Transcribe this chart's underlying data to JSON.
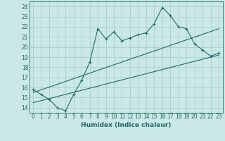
{
  "xlabel": "Humidex (Indice chaleur)",
  "xlim": [
    -0.5,
    23.5
  ],
  "ylim": [
    13.5,
    24.5
  ],
  "yticks": [
    14,
    15,
    16,
    17,
    18,
    19,
    20,
    21,
    22,
    23,
    24
  ],
  "xticks": [
    0,
    1,
    2,
    3,
    4,
    5,
    6,
    7,
    8,
    9,
    10,
    11,
    12,
    13,
    14,
    15,
    16,
    17,
    18,
    19,
    20,
    21,
    22,
    23
  ],
  "bg_color": "#cce8e6",
  "grid_color": "#aacfcd",
  "line_color": "#1a6b6b",
  "main_x": [
    0,
    1,
    2,
    3,
    4,
    5,
    6,
    7,
    8,
    9,
    10,
    11,
    12,
    13,
    14,
    15,
    16,
    17,
    18,
    19,
    20,
    21,
    22,
    23
  ],
  "main_y": [
    15.8,
    15.3,
    14.8,
    14.0,
    13.7,
    15.3,
    16.7,
    18.5,
    21.8,
    20.8,
    21.5,
    20.6,
    20.9,
    21.2,
    21.4,
    22.3,
    23.9,
    23.1,
    22.0,
    21.8,
    20.3,
    19.7,
    19.1,
    19.4
  ],
  "line1_x": [
    0,
    23
  ],
  "line1_y": [
    15.5,
    21.8
  ],
  "line2_x": [
    0,
    23
  ],
  "line2_y": [
    14.5,
    19.2
  ]
}
